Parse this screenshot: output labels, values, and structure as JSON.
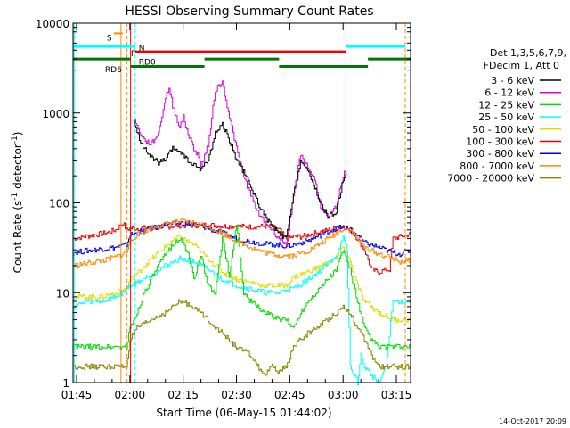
{
  "chart_data": {
    "type": "line",
    "title": "HESSI Observing Summary Count Rates",
    "xlabel": "Start Time (06-May-15 01:44:02)",
    "ylabel_main": "Count Rate (s",
    "ylabel_sup1": "-1",
    "ylabel_mid": " detector",
    "ylabel_sup2": "-1",
    "ylabel_end": ")",
    "x_unit": "minutes since 01:44:02",
    "xlim": [
      0,
      95
    ],
    "ylim": [
      1,
      10000
    ],
    "yscale": "log",
    "x_ticks": [
      {
        "label": "01:45",
        "x": 1
      },
      {
        "label": "02:00",
        "x": 16
      },
      {
        "label": "02:15",
        "x": 31
      },
      {
        "label": "02:30",
        "x": 46
      },
      {
        "label": "02:45",
        "x": 61
      },
      {
        "label": "03:00",
        "x": 76
      },
      {
        "label": "03:15",
        "x": 91
      }
    ],
    "y_ticks": [
      {
        "label": "1",
        "y": 1
      },
      {
        "label": "10",
        "y": 10
      },
      {
        "label": "100",
        "y": 100
      },
      {
        "label": "1000",
        "y": 1000
      },
      {
        "label": "10000",
        "y": 10000
      }
    ],
    "legend": {
      "header1": "Det 1,3,5,6,7,9,",
      "header2": "FDecim 1, Att 0",
      "entries": [
        {
          "label": "3 - 6 keV",
          "color": "#000000"
        },
        {
          "label": "6 - 12 keV",
          "color": "#dd00dd"
        },
        {
          "label": "12 - 25 keV",
          "color": "#00dd00"
        },
        {
          "label": "25 - 50 keV",
          "color": "#00ffff"
        },
        {
          "label": "50 - 100 keV",
          "color": "#dddd00"
        },
        {
          "label": "100 - 300 keV",
          "color": "#ee0000"
        },
        {
          "label": "300 - 800 keV",
          "color": "#0000ee"
        },
        {
          "label": "800 - 7000 keV",
          "color": "#ff8800"
        },
        {
          "label": "7000 - 20000 keV",
          "color": "#888800"
        }
      ]
    },
    "series": [
      {
        "color": "#ee0000",
        "x": [
          0,
          3,
          6,
          9,
          12,
          14,
          15,
          16,
          18,
          22,
          26,
          30,
          34,
          38,
          42,
          46,
          50,
          54,
          56,
          58,
          60,
          62,
          64,
          66,
          68,
          70,
          72,
          74,
          76,
          78,
          80,
          82,
          84,
          86,
          88,
          89,
          90,
          92,
          95
        ],
        "y": [
          40,
          42,
          44,
          46,
          50,
          60,
          50,
          52,
          52,
          53,
          54,
          56,
          56,
          57,
          55,
          55,
          54,
          55,
          54,
          50,
          40,
          42,
          42,
          44,
          46,
          48,
          50,
          52,
          55,
          50,
          40,
          30,
          18,
          17,
          18,
          18,
          40,
          42,
          45
        ]
      },
      {
        "color": "#0000ee",
        "x": [
          0,
          3,
          6,
          9,
          12,
          15,
          16,
          18,
          22,
          26,
          30,
          34,
          38,
          42,
          46,
          50,
          54,
          58,
          60,
          62,
          66,
          70,
          74,
          76,
          78,
          80,
          82,
          86,
          90,
          92,
          95
        ],
        "y": [
          28,
          29,
          30,
          31,
          32,
          34,
          44,
          46,
          52,
          57,
          60,
          58,
          52,
          46,
          40,
          37,
          35,
          34,
          33,
          34,
          38,
          44,
          52,
          54,
          50,
          44,
          36,
          32,
          28,
          27,
          30
        ]
      },
      {
        "color": "#ff8800",
        "x": [
          0,
          3,
          6,
          9,
          12,
          15,
          16,
          18,
          22,
          26,
          30,
          34,
          38,
          42,
          46,
          50,
          54,
          58,
          62,
          66,
          70,
          74,
          76,
          78,
          80,
          82,
          86,
          90,
          92,
          95
        ],
        "y": [
          20,
          21,
          22,
          23,
          25,
          28,
          38,
          44,
          52,
          58,
          62,
          60,
          54,
          46,
          38,
          32,
          28,
          26,
          26,
          29,
          36,
          46,
          52,
          50,
          40,
          32,
          27,
          24,
          22,
          23
        ]
      },
      {
        "color": "#dddd00",
        "x": [
          0,
          4,
          8,
          12,
          15,
          16,
          18,
          20,
          24,
          28,
          30,
          34,
          38,
          42,
          46,
          50,
          54,
          58,
          60,
          62,
          66,
          70,
          74,
          76,
          78,
          80,
          82,
          86,
          90,
          95
        ],
        "y": [
          9,
          9,
          9,
          10,
          11,
          14,
          16,
          20,
          28,
          38,
          42,
          34,
          24,
          17,
          14,
          13,
          12,
          12,
          12,
          15,
          17,
          20,
          24,
          32,
          22,
          12,
          8,
          6,
          5,
          5
        ]
      },
      {
        "color": "#00ffff",
        "x": [
          0,
          4,
          8,
          12,
          14,
          16,
          18,
          22,
          26,
          30,
          34,
          38,
          42,
          46,
          50,
          54,
          58,
          60,
          62,
          66,
          70,
          74,
          76,
          77,
          78,
          80,
          81,
          82,
          84,
          86,
          88,
          90,
          95
        ],
        "y": [
          7,
          8,
          8,
          9,
          10,
          12,
          13,
          16,
          20,
          24,
          22,
          18,
          14,
          12,
          11,
          10,
          10,
          11,
          11,
          14,
          18,
          26,
          40,
          30,
          1.5,
          1,
          2,
          1.5,
          1.2,
          1,
          1.5,
          8,
          8
        ]
      },
      {
        "color": "#00dd00",
        "x": [
          0,
          3,
          6,
          9,
          12,
          15,
          16,
          18,
          20,
          24,
          28,
          30,
          32,
          34,
          36,
          38,
          40,
          42,
          44,
          46,
          48,
          50,
          54,
          58,
          60,
          62,
          64,
          66,
          70,
          74,
          76,
          78,
          80,
          82,
          84,
          86,
          88,
          90,
          95
        ],
        "y": [
          2.5,
          2.5,
          2.5,
          2.5,
          2.5,
          2.5,
          4,
          6,
          10,
          20,
          35,
          40,
          30,
          15,
          25,
          12,
          10,
          40,
          15,
          60,
          10,
          8,
          6,
          5,
          5,
          4,
          6,
          8,
          12,
          18,
          30,
          18,
          8,
          4,
          3,
          2.5,
          2.5,
          2.5,
          2.5
        ]
      },
      {
        "color": "#888800",
        "x": [
          0,
          3,
          6,
          9,
          12,
          15,
          16,
          18,
          22,
          26,
          30,
          34,
          38,
          42,
          46,
          50,
          52,
          54,
          56,
          58,
          60,
          62,
          64,
          66,
          70,
          74,
          76,
          78,
          80,
          82,
          84,
          86,
          90,
          95
        ],
        "y": [
          1.5,
          1.5,
          1.5,
          1.5,
          1.5,
          1.5,
          3,
          4,
          5,
          6,
          8,
          7,
          5,
          3.5,
          2.5,
          2,
          1.5,
          1.2,
          1.5,
          1.3,
          1.5,
          2.5,
          3,
          3.5,
          4.5,
          6,
          7,
          6,
          4,
          3,
          2,
          1.5,
          1.5,
          1.5
        ]
      },
      {
        "color": "#dd00dd",
        "x": [
          17,
          18,
          20,
          22,
          24,
          26,
          27,
          28,
          30,
          31,
          32,
          33,
          34,
          35,
          36,
          38,
          40,
          42,
          44,
          46,
          48,
          50,
          52,
          54,
          56,
          58,
          60,
          62,
          64,
          66,
          68,
          70,
          72,
          74,
          76,
          77
        ],
        "y": [
          900,
          700,
          500,
          450,
          600,
          1500,
          1900,
          1200,
          700,
          900,
          650,
          500,
          400,
          350,
          250,
          450,
          1800,
          2200,
          900,
          400,
          200,
          120,
          80,
          60,
          50,
          40,
          35,
          120,
          350,
          250,
          180,
          80,
          70,
          90,
          200,
          240
        ]
      },
      {
        "color": "#000000",
        "x": [
          17,
          18,
          20,
          22,
          24,
          26,
          28,
          30,
          32,
          34,
          36,
          38,
          40,
          42,
          44,
          46,
          48,
          50,
          52,
          54,
          56,
          58,
          60,
          62,
          64,
          66,
          68,
          70,
          72,
          74,
          76,
          77
        ],
        "y": [
          800,
          600,
          400,
          320,
          280,
          300,
          400,
          380,
          300,
          260,
          240,
          300,
          600,
          750,
          500,
          300,
          220,
          150,
          100,
          70,
          55,
          45,
          40,
          120,
          300,
          220,
          150,
          90,
          70,
          80,
          180,
          220
        ]
      }
    ],
    "annotations": [
      {
        "label": "S",
        "color": "#ff8800"
      },
      {
        "label": "N",
        "color": "#00ffff"
      },
      {
        "label": "F",
        "color": "#ee0000"
      },
      {
        "label": "RD0",
        "color": "#000000"
      },
      {
        "label": "RD6",
        "color": "#000000"
      }
    ],
    "timestamp": "14-Oct-2017 20:09"
  }
}
